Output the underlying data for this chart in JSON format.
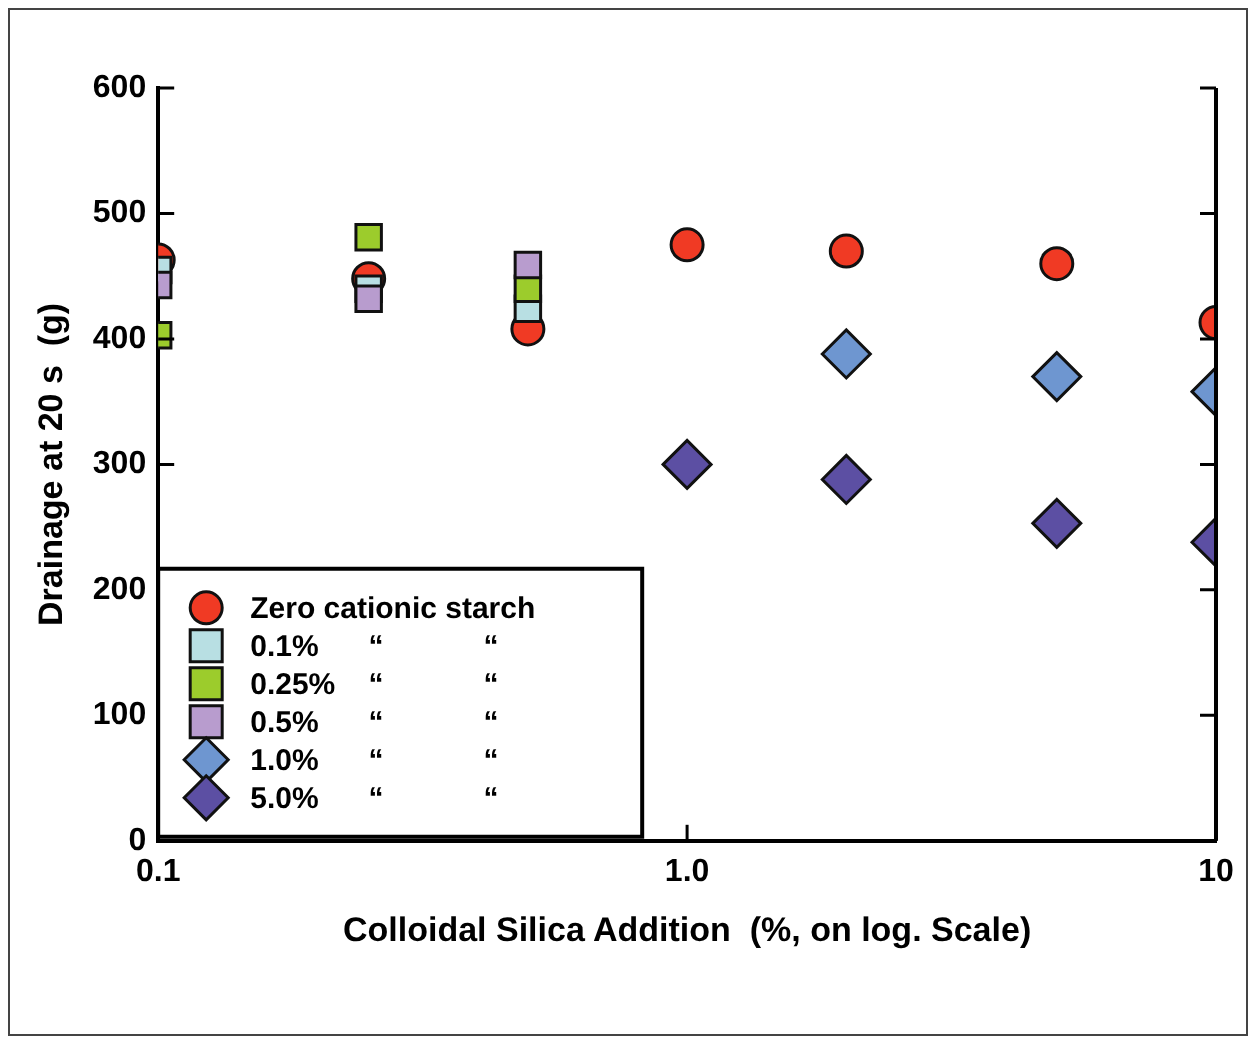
{
  "chart_data": {
    "type": "scatter",
    "xlabel": "Colloidal Silica Addition  (%, on log. Scale)",
    "ylabel": "Drainage at 20 s  (g)",
    "log": "x",
    "xlim": [
      0.1,
      10
    ],
    "xticks": [
      0.1,
      {
        "value": 1,
        "label": "1.0"
      },
      10
    ],
    "ylim": [
      0,
      600
    ],
    "yticks": [
      0,
      100,
      200,
      300,
      400,
      500,
      600
    ],
    "grid": false,
    "legend": "bottom left",
    "series": [
      {
        "name": "Zero cationic starch",
        "color": "#f03a24",
        "marker": "circle",
        "x": [
          0.1,
          0.25,
          0.5,
          1,
          2,
          5,
          10
        ],
        "values": [
          463,
          448,
          408,
          475,
          470,
          460,
          413
        ]
      },
      {
        "name": "0.1%      “            “",
        "color": "#b8dfe3",
        "marker": "square",
        "x": [
          0.1,
          0.25,
          0.5
        ],
        "values": [
          455,
          440,
          424
        ]
      },
      {
        "name": "0.25%    “            “",
        "color": "#9ccc2c",
        "marker": "square",
        "x": [
          0.1,
          0.25,
          0.5
        ],
        "values": [
          403,
          481,
          440
        ]
      },
      {
        "name": "0.5%      “            “",
        "color": "#b89cce",
        "marker": "square",
        "x": [
          0.1,
          0.25,
          0.5
        ],
        "values": [
          443,
          432,
          459
        ]
      },
      {
        "name": "1.0%      “            “",
        "color": "#6e96d0",
        "marker": "diamond",
        "x": [
          2,
          5,
          10
        ],
        "values": [
          388,
          370,
          358
        ]
      },
      {
        "name": "5.0%      “            “",
        "color": "#5c4fa3",
        "marker": "diamond",
        "x": [
          1,
          2,
          5,
          10
        ],
        "values": [
          300,
          288,
          253,
          238
        ]
      }
    ]
  }
}
